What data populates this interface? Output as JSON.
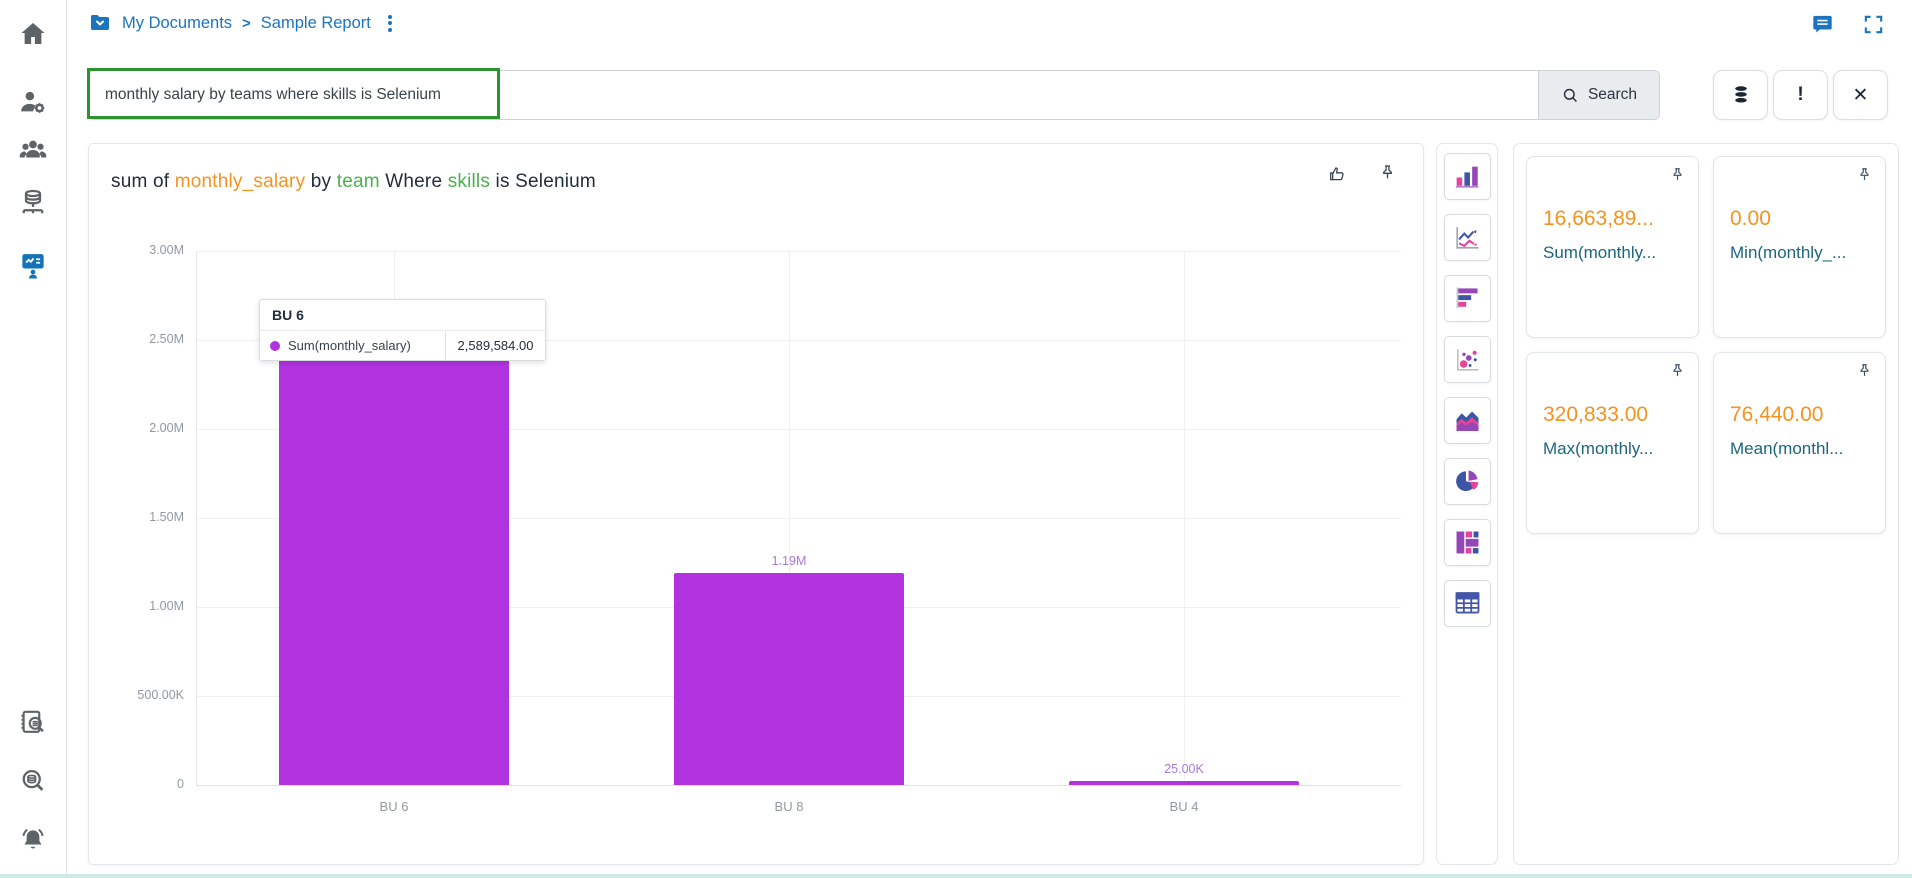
{
  "breadcrumb": {
    "items": [
      "My Documents",
      "Sample Report"
    ],
    "separator": ">",
    "accent_color": "#1b74bd"
  },
  "search": {
    "query": "monthly salary by teams where skills is Selenium",
    "button_label": "Search",
    "highlight_color": "#2c9330",
    "action_icons": [
      "database-icon",
      "exclamation-icon",
      "close-icon"
    ],
    "exclamation_glyph": "!",
    "close_glyph": "✕"
  },
  "sidebar": {
    "active_color": "#1273b8",
    "items": [
      "home",
      "user-settings",
      "user-groups",
      "database-server",
      "presentation (active)",
      "report-search",
      "data-search",
      "notifications"
    ]
  },
  "chart": {
    "title_parts": [
      {
        "text": "sum of ",
        "color": "#222e3a"
      },
      {
        "text": "monthly_salary",
        "color": "#f6921e"
      },
      {
        "text": " by ",
        "color": "#222e3a"
      },
      {
        "text": "team",
        "color": "#4caf50"
      },
      {
        "text": " Where ",
        "color": "#222e3a"
      },
      {
        "text": "skills",
        "color": "#4caf50"
      },
      {
        "text": " is Selenium",
        "color": "#222e3a"
      }
    ],
    "tooltip": {
      "category": "BU 6",
      "series": "Sum(monthly_salary)",
      "value": "2,589,584.00",
      "dot_color": "#b133e0"
    }
  },
  "chart_data": {
    "type": "bar",
    "title": "sum of monthly_salary by team Where skills is Selenium",
    "categories": [
      "BU 6",
      "BU 8",
      "BU 4"
    ],
    "series": [
      {
        "name": "Sum(monthly_salary)",
        "values": [
          2589584,
          1190000,
          25000
        ]
      }
    ],
    "bar_labels": [
      null,
      "1.19M",
      "25.00K"
    ],
    "xlabel": "",
    "ylabel": "",
    "ylim": [
      0,
      3000000
    ],
    "yticks": [
      {
        "v": 0,
        "label": "0"
      },
      {
        "v": 500000,
        "label": "500.00K"
      },
      {
        "v": 1000000,
        "label": "1.00M"
      },
      {
        "v": 1500000,
        "label": "1.50M"
      },
      {
        "v": 2000000,
        "label": "2.00M"
      },
      {
        "v": 2500000,
        "label": "2.50M"
      },
      {
        "v": 3000000,
        "label": "3.00M"
      }
    ],
    "bar_color": "#b133e0",
    "grid": true,
    "legend_position": "none"
  },
  "chart_tools": [
    "bar-chart",
    "line-chart",
    "horizontal-bar-chart",
    "scatter-plot",
    "area-chart",
    "pie-chart",
    "treemap",
    "table"
  ],
  "kpis": [
    {
      "value": "16,663,89...",
      "label": "Sum(monthly..."
    },
    {
      "value": "0.00",
      "label": "Min(monthly_..."
    },
    {
      "value": "320,833.00",
      "label": "Max(monthly..."
    },
    {
      "value": "76,440.00",
      "label": "Mean(monthl..."
    }
  ],
  "kpi_colors": {
    "value": "#f6921e",
    "label": "#1c657f"
  }
}
